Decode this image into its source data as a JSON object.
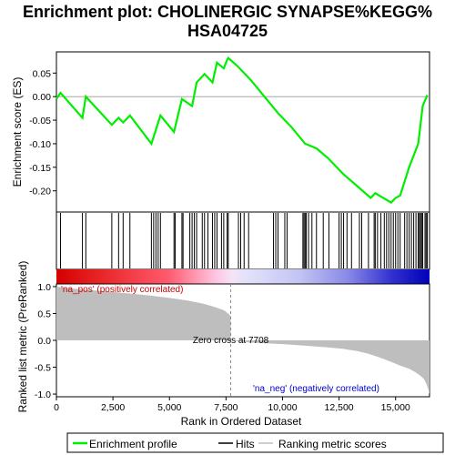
{
  "chart_data": {
    "type": "line",
    "title_line1": "Enrichment plot: CHOLINERGIC SYNAPSE%KEGG%",
    "title_line2": "HSA04725",
    "xlabel": "Rank in Ordered Dataset",
    "ylabel_top": "Enrichment score (ES)",
    "ylabel_bottom": "Ranked list metric (PreRanked)",
    "x_range": [
      0,
      16500
    ],
    "x_ticks": [
      0,
      2500,
      5000,
      7500,
      10000,
      12500,
      15000
    ],
    "x_tick_labels": [
      "0",
      "2,500",
      "5,000",
      "7,500",
      "10,000",
      "12,500",
      "15,000"
    ],
    "es_ylim": [
      -0.245,
      0.095
    ],
    "es_ticks": [
      0.05,
      0.0,
      -0.05,
      -0.1,
      -0.15,
      -0.2
    ],
    "es_tick_labels": [
      "0.05",
      "0.00",
      "-0.05",
      "-0.10",
      "-0.15",
      "-0.20"
    ],
    "metric_ylim": [
      -1.05,
      1.05
    ],
    "metric_ticks": [
      1.0,
      0.5,
      0.0,
      -0.5,
      -1.0
    ],
    "metric_tick_labels": [
      "1.0",
      "0.5",
      "0.0",
      "-0.5",
      "-1.0"
    ],
    "enrichment_profile": {
      "x": [
        0,
        180,
        1150,
        1300,
        2450,
        2750,
        2950,
        3250,
        4200,
        4600,
        5200,
        5550,
        6000,
        6200,
        6550,
        6900,
        7100,
        7400,
        7550,
        7600,
        8000,
        8600,
        9200,
        9800,
        10400,
        11000,
        11500,
        12000,
        12700,
        13300,
        13900,
        14100,
        14800,
        15000,
        15200,
        15600,
        16000,
        16200,
        16400
      ],
      "y": [
        -0.005,
        0.008,
        -0.045,
        0.0,
        -0.06,
        -0.045,
        -0.055,
        -0.04,
        -0.1,
        -0.04,
        -0.075,
        -0.005,
        -0.02,
        0.03,
        0.048,
        0.03,
        0.072,
        0.06,
        0.078,
        0.082,
        0.065,
        0.035,
        0.0,
        -0.035,
        -0.065,
        -0.1,
        -0.11,
        -0.13,
        -0.165,
        -0.19,
        -0.215,
        -0.205,
        -0.225,
        -0.215,
        -0.21,
        -0.15,
        -0.1,
        -0.02,
        0.003
      ]
    },
    "hits": [
      180,
      1150,
      1300,
      2450,
      2750,
      2950,
      3250,
      4200,
      4300,
      4400,
      4500,
      4600,
      5200,
      5250,
      5550,
      5600,
      5900,
      6000,
      6100,
      6200,
      6450,
      6550,
      6700,
      6900,
      7000,
      7100,
      7300,
      7400,
      7550,
      7600,
      8050,
      8150,
      8300,
      8500,
      9600,
      9700,
      9800,
      10100,
      10200,
      10900,
      10950,
      11000,
      11050,
      11150,
      11300,
      11500,
      11800,
      12050,
      12500,
      12600,
      12700,
      12850,
      13050,
      13400,
      13500,
      13800,
      14050,
      14100,
      14200,
      14350,
      14500,
      14600,
      14700,
      14800,
      14900,
      15000,
      15100,
      15200,
      15400,
      15500,
      15600,
      15700,
      15800,
      15900,
      16000,
      16050,
      16100,
      16150,
      16200,
      16300,
      16350,
      16400
    ],
    "ranking_metric": {
      "x": [
        0,
        300,
        1000,
        2000,
        3000,
        4000,
        5000,
        5800,
        6500,
        7000,
        7400,
        7600,
        7708,
        7708,
        8500,
        10000,
        11000,
        12000,
        12700,
        13300,
        13800,
        14300,
        14800,
        15200,
        15600,
        15900,
        16100,
        16250,
        16350,
        16450,
        16500
      ],
      "y": [
        1.0,
        0.98,
        0.95,
        0.92,
        0.88,
        0.84,
        0.79,
        0.74,
        0.68,
        0.62,
        0.56,
        0.5,
        0.45,
        0.0,
        -0.04,
        -0.07,
        -0.1,
        -0.13,
        -0.16,
        -0.2,
        -0.25,
        -0.32,
        -0.4,
        -0.47,
        -0.53,
        -0.6,
        -0.66,
        -0.72,
        -0.8,
        -0.92,
        -1.0
      ]
    },
    "zero_cross_label": "Zero cross at 7708",
    "zero_cross_x": 7708,
    "pos_label": "'na_pos' (positively correlated)",
    "neg_label": "'na_neg' (negatively correlated)",
    "legend": {
      "items": [
        "Enrichment profile",
        "Hits",
        "Ranking metric scores"
      ],
      "placement": "bottom"
    },
    "colors": {
      "profile": "#00ee00",
      "hits": "#000000",
      "metric_fill": "#bebebe",
      "pos_text": "#cc0000",
      "neg_text": "#0000cc",
      "zero_line": "#888888"
    }
  }
}
